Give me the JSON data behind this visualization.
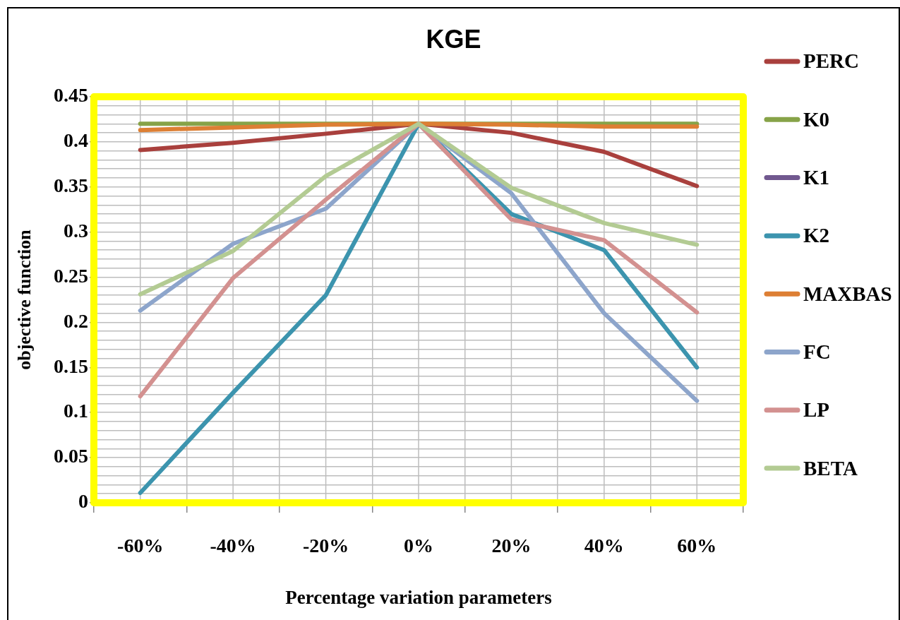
{
  "chart_data": {
    "type": "line",
    "title": "KGE",
    "xlabel": "Percentage variation parameters",
    "ylabel": "objective function",
    "categories": [
      "-60%",
      "-40%",
      "-20%",
      "0%",
      "20%",
      "40%",
      "60%"
    ],
    "series": [
      {
        "name": "PERC",
        "color": "#a9403d",
        "values": [
          0.391,
          0.399,
          0.409,
          0.42,
          0.41,
          0.389,
          0.351
        ]
      },
      {
        "name": "K0",
        "color": "#87a348",
        "values": [
          0.42,
          0.42,
          0.42,
          0.42,
          0.42,
          0.42,
          0.42
        ]
      },
      {
        "name": "K1",
        "color": "#71588f",
        "values": [
          null,
          null,
          null,
          null,
          null,
          null,
          null
        ]
      },
      {
        "name": "K2",
        "color": "#3c94ae",
        "values": [
          0.011,
          0.122,
          0.23,
          0.42,
          0.32,
          0.28,
          0.15
        ]
      },
      {
        "name": "MAXBAS",
        "color": "#dd7f34",
        "values": [
          0.413,
          0.416,
          0.419,
          0.42,
          0.419,
          0.417,
          0.417
        ]
      },
      {
        "name": "FC",
        "color": "#8da5cb",
        "values": [
          0.213,
          0.287,
          0.326,
          0.42,
          0.343,
          0.21,
          0.113
        ]
      },
      {
        "name": "LP",
        "color": "#d39190",
        "values": [
          0.118,
          0.249,
          0.336,
          0.42,
          0.314,
          0.291,
          0.211
        ]
      },
      {
        "name": "BETA",
        "color": "#b3cb93",
        "values": [
          0.231,
          0.279,
          0.362,
          0.42,
          0.349,
          0.31,
          0.286
        ]
      }
    ],
    "ylim": [
      0,
      0.45
    ],
    "yticks": [
      0,
      {
        "value": 0.01,
        "label": null
      },
      {
        "value": 0.02,
        "label": null
      },
      {
        "value": 0.03,
        "label": null
      },
      {
        "value": 0.04,
        "label": null
      },
      0.05,
      {
        "value": 0.06,
        "label": null
      },
      {
        "value": 0.07,
        "label": null
      },
      {
        "value": 0.08,
        "label": null
      },
      {
        "value": 0.09,
        "label": null
      },
      0.1,
      {
        "value": 0.11,
        "label": null
      },
      {
        "value": 0.12,
        "label": null
      },
      {
        "value": 0.13,
        "label": null
      },
      {
        "value": 0.14,
        "label": null
      },
      0.15,
      {
        "value": 0.16,
        "label": null
      },
      {
        "value": 0.17,
        "label": null
      },
      {
        "value": 0.18,
        "label": null
      },
      {
        "value": 0.19,
        "label": null
      },
      0.2,
      {
        "value": 0.21,
        "label": null
      },
      {
        "value": 0.22,
        "label": null
      },
      {
        "value": 0.23,
        "label": null
      },
      {
        "value": 0.24,
        "label": null
      },
      0.25,
      {
        "value": 0.26,
        "label": null
      },
      {
        "value": 0.27,
        "label": null
      },
      {
        "value": 0.28,
        "label": null
      },
      {
        "value": 0.29,
        "label": null
      },
      0.3,
      {
        "value": 0.31,
        "label": null
      },
      {
        "value": 0.32,
        "label": null
      },
      {
        "value": 0.33,
        "label": null
      },
      {
        "value": 0.34,
        "label": null
      },
      0.35,
      {
        "value": 0.36,
        "label": null
      },
      {
        "value": 0.37,
        "label": null
      },
      {
        "value": 0.38,
        "label": null
      },
      {
        "value": 0.39,
        "label": null
      },
      0.4,
      {
        "value": 0.41,
        "label": null
      },
      {
        "value": 0.42,
        "label": null
      },
      {
        "value": 0.43,
        "label": null
      },
      {
        "value": 0.44,
        "label": null
      },
      0.45
    ],
    "grid": true,
    "legend": "right"
  }
}
